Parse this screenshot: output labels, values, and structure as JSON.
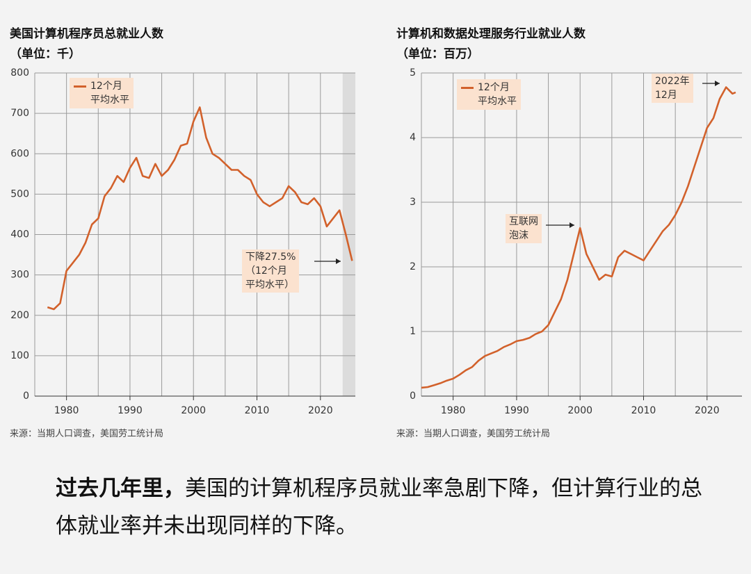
{
  "chart_data": [
    {
      "type": "line",
      "title": "美国计算机程序员总就业人数",
      "subtitle": "（单位：千）",
      "x": [
        1977,
        1978,
        1979,
        1980,
        1981,
        1982,
        1983,
        1984,
        1985,
        1986,
        1987,
        1988,
        1989,
        1990,
        1991,
        1992,
        1993,
        1994,
        1995,
        1996,
        1997,
        1998,
        1999,
        2000,
        2001,
        2002,
        2003,
        2004,
        2005,
        2006,
        2007,
        2008,
        2009,
        2010,
        2011,
        2012,
        2013,
        2014,
        2015,
        2016,
        2017,
        2018,
        2019,
        2020,
        2021,
        2022,
        2023,
        2024,
        2025
      ],
      "series": [
        {
          "name": "12个月\n平均水平",
          "color": "#d2612b",
          "values": [
            220,
            215,
            230,
            310,
            330,
            350,
            380,
            425,
            440,
            495,
            515,
            545,
            530,
            565,
            590,
            545,
            540,
            575,
            545,
            560,
            585,
            620,
            625,
            680,
            715,
            640,
            600,
            590,
            575,
            560,
            560,
            545,
            535,
            500,
            480,
            470,
            480,
            490,
            520,
            505,
            480,
            475,
            490,
            470,
            420,
            440,
            460,
            400,
            335
          ]
        }
      ],
      "xlim": [
        1975,
        2025.5
      ],
      "ylim": [
        0,
        800
      ],
      "xticks": [
        1980,
        1990,
        2000,
        2010,
        2020
      ],
      "xgrid": [
        1975,
        1980,
        1985,
        1990,
        1995,
        2000,
        2005,
        2010,
        2015,
        2020
      ],
      "yticks": [
        0,
        100,
        200,
        300,
        400,
        500,
        600,
        700,
        800
      ],
      "highlight_x": [
        2023.5,
        2025.5
      ],
      "grid": true,
      "annotations": [
        "下降27.5%\n（12个月\n平均水平）"
      ],
      "source": "来源：当期人口调查，美国劳工统计局"
    },
    {
      "type": "line",
      "title": "计算机和数据处理服务行业就业人数",
      "subtitle": "（单位：百万）",
      "x": [
        1975,
        1976,
        1977,
        1978,
        1979,
        1980,
        1981,
        1982,
        1983,
        1984,
        1985,
        1986,
        1987,
        1988,
        1989,
        1990,
        1991,
        1992,
        1993,
        1994,
        1995,
        1996,
        1997,
        1998,
        1999,
        2000,
        2001,
        2002,
        2003,
        2004,
        2005,
        2006,
        2007,
        2008,
        2009,
        2010,
        2011,
        2012,
        2013,
        2014,
        2015,
        2016,
        2017,
        2018,
        2019,
        2020,
        2021,
        2022,
        2023,
        2024,
        2024.5
      ],
      "series": [
        {
          "name": "12个月\n平均水平",
          "color": "#d2612b",
          "values": [
            0.13,
            0.14,
            0.17,
            0.2,
            0.24,
            0.27,
            0.33,
            0.4,
            0.45,
            0.55,
            0.62,
            0.66,
            0.7,
            0.76,
            0.8,
            0.85,
            0.87,
            0.9,
            0.96,
            1.0,
            1.1,
            1.3,
            1.5,
            1.8,
            2.2,
            2.6,
            2.2,
            2.0,
            1.8,
            1.88,
            1.85,
            2.15,
            2.25,
            2.2,
            2.15,
            2.1,
            2.25,
            2.4,
            2.55,
            2.65,
            2.8,
            3.0,
            3.25,
            3.55,
            3.85,
            4.15,
            4.3,
            4.6,
            4.78,
            4.68,
            4.7
          ]
        }
      ],
      "xlim": [
        1975,
        2025.5
      ],
      "ylim": [
        0,
        5
      ],
      "xticks": [
        1980,
        1990,
        2000,
        2010,
        2020
      ],
      "xgrid": [
        1975,
        1980,
        1985,
        1990,
        1995,
        2000,
        2005,
        2010,
        2015,
        2020
      ],
      "yticks": [
        0,
        1,
        2,
        3,
        4,
        5
      ],
      "grid": true,
      "annotations": [
        "互联网\n泡沫",
        "2022年\n12月"
      ],
      "source": "来源：当期人口调查，美国劳工统计局"
    }
  ],
  "caption": {
    "lead": "过去几年里，",
    "text": "美国的计算机程序员就业率急剧下降，但计算行业的总体就业率并未出现同样的下降。"
  }
}
